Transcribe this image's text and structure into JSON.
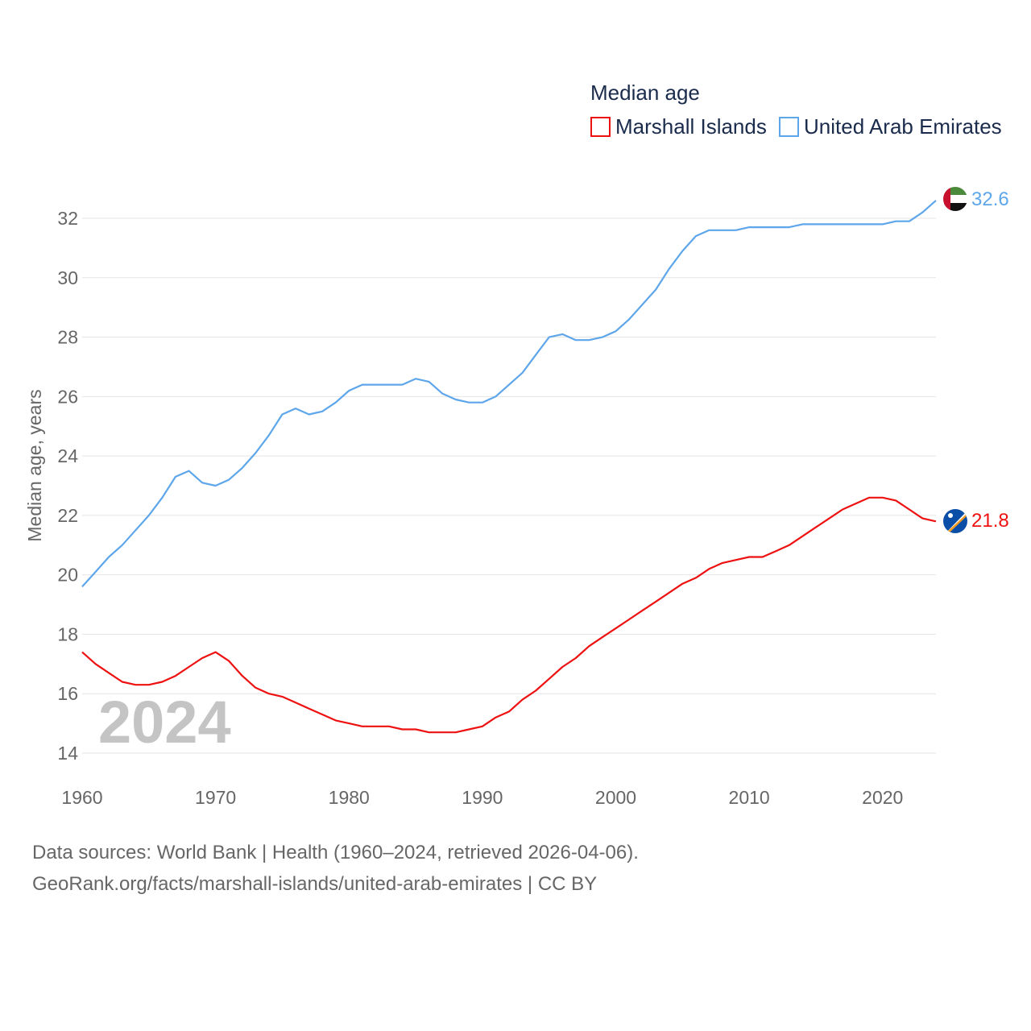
{
  "chart_data": {
    "type": "line",
    "title": "Median age",
    "ylabel": "Median age, years",
    "xlabel": "",
    "xlim": [
      1960,
      2024
    ],
    "ylim": [
      14,
      32
    ],
    "yticks": [
      14,
      16,
      18,
      20,
      22,
      24,
      26,
      28,
      30,
      32
    ],
    "xticks": [
      1960,
      1970,
      1980,
      1990,
      2000,
      2010,
      2020
    ],
    "grid": true,
    "legend_position": "top-right",
    "watermark_year": "2024",
    "x": [
      1960,
      1961,
      1962,
      1963,
      1964,
      1965,
      1966,
      1967,
      1968,
      1969,
      1970,
      1971,
      1972,
      1973,
      1974,
      1975,
      1976,
      1977,
      1978,
      1979,
      1980,
      1981,
      1982,
      1983,
      1984,
      1985,
      1986,
      1987,
      1988,
      1989,
      1990,
      1991,
      1992,
      1993,
      1994,
      1995,
      1996,
      1997,
      1998,
      1999,
      2000,
      2001,
      2002,
      2003,
      2004,
      2005,
      2006,
      2007,
      2008,
      2009,
      2010,
      2011,
      2012,
      2013,
      2014,
      2015,
      2016,
      2017,
      2018,
      2019,
      2020,
      2021,
      2022,
      2023,
      2024
    ],
    "series": [
      {
        "name": "Marshall Islands",
        "color": "#ee1111",
        "end_label": "21.8",
        "values": [
          17.4,
          17.0,
          16.7,
          16.4,
          16.3,
          16.3,
          16.4,
          16.6,
          16.9,
          17.2,
          17.4,
          17.1,
          16.6,
          16.2,
          16.0,
          15.9,
          15.7,
          15.5,
          15.3,
          15.1,
          15.0,
          14.9,
          14.9,
          14.9,
          14.8,
          14.8,
          14.7,
          14.7,
          14.7,
          14.8,
          14.9,
          15.2,
          15.4,
          15.8,
          16.1,
          16.5,
          16.9,
          17.2,
          17.6,
          17.9,
          18.2,
          18.5,
          18.8,
          19.1,
          19.4,
          19.7,
          19.9,
          20.2,
          20.4,
          20.5,
          20.6,
          20.6,
          20.8,
          21.0,
          21.3,
          21.6,
          21.9,
          22.2,
          22.4,
          22.6,
          22.6,
          22.5,
          22.2,
          21.9,
          21.8
        ]
      },
      {
        "name": "United Arab Emirates",
        "color": "#5ea6ea",
        "end_label": "32.6",
        "values": [
          19.6,
          20.1,
          20.6,
          21.0,
          21.5,
          22.0,
          22.6,
          23.3,
          23.5,
          23.1,
          23.0,
          23.2,
          23.6,
          24.1,
          24.7,
          25.4,
          25.6,
          25.4,
          25.5,
          25.8,
          26.2,
          26.4,
          26.4,
          26.4,
          26.4,
          26.6,
          26.5,
          26.1,
          25.9,
          25.8,
          25.8,
          26.0,
          26.4,
          26.8,
          27.4,
          28.0,
          28.1,
          27.9,
          27.9,
          28.0,
          28.2,
          28.6,
          29.1,
          29.6,
          30.3,
          30.9,
          31.4,
          31.6,
          31.6,
          31.6,
          31.7,
          31.7,
          31.7,
          31.7,
          31.8,
          31.8,
          31.8,
          31.8,
          31.8,
          31.8,
          31.8,
          31.9,
          31.9,
          32.2,
          32.6
        ]
      }
    ]
  },
  "footer": {
    "line1": "Data sources: World Bank | Health (1960–2024, retrieved 2026-04-06).",
    "line2": "GeoRank.org/facts/marshall-islands/united-arab-emirates | CC BY"
  }
}
